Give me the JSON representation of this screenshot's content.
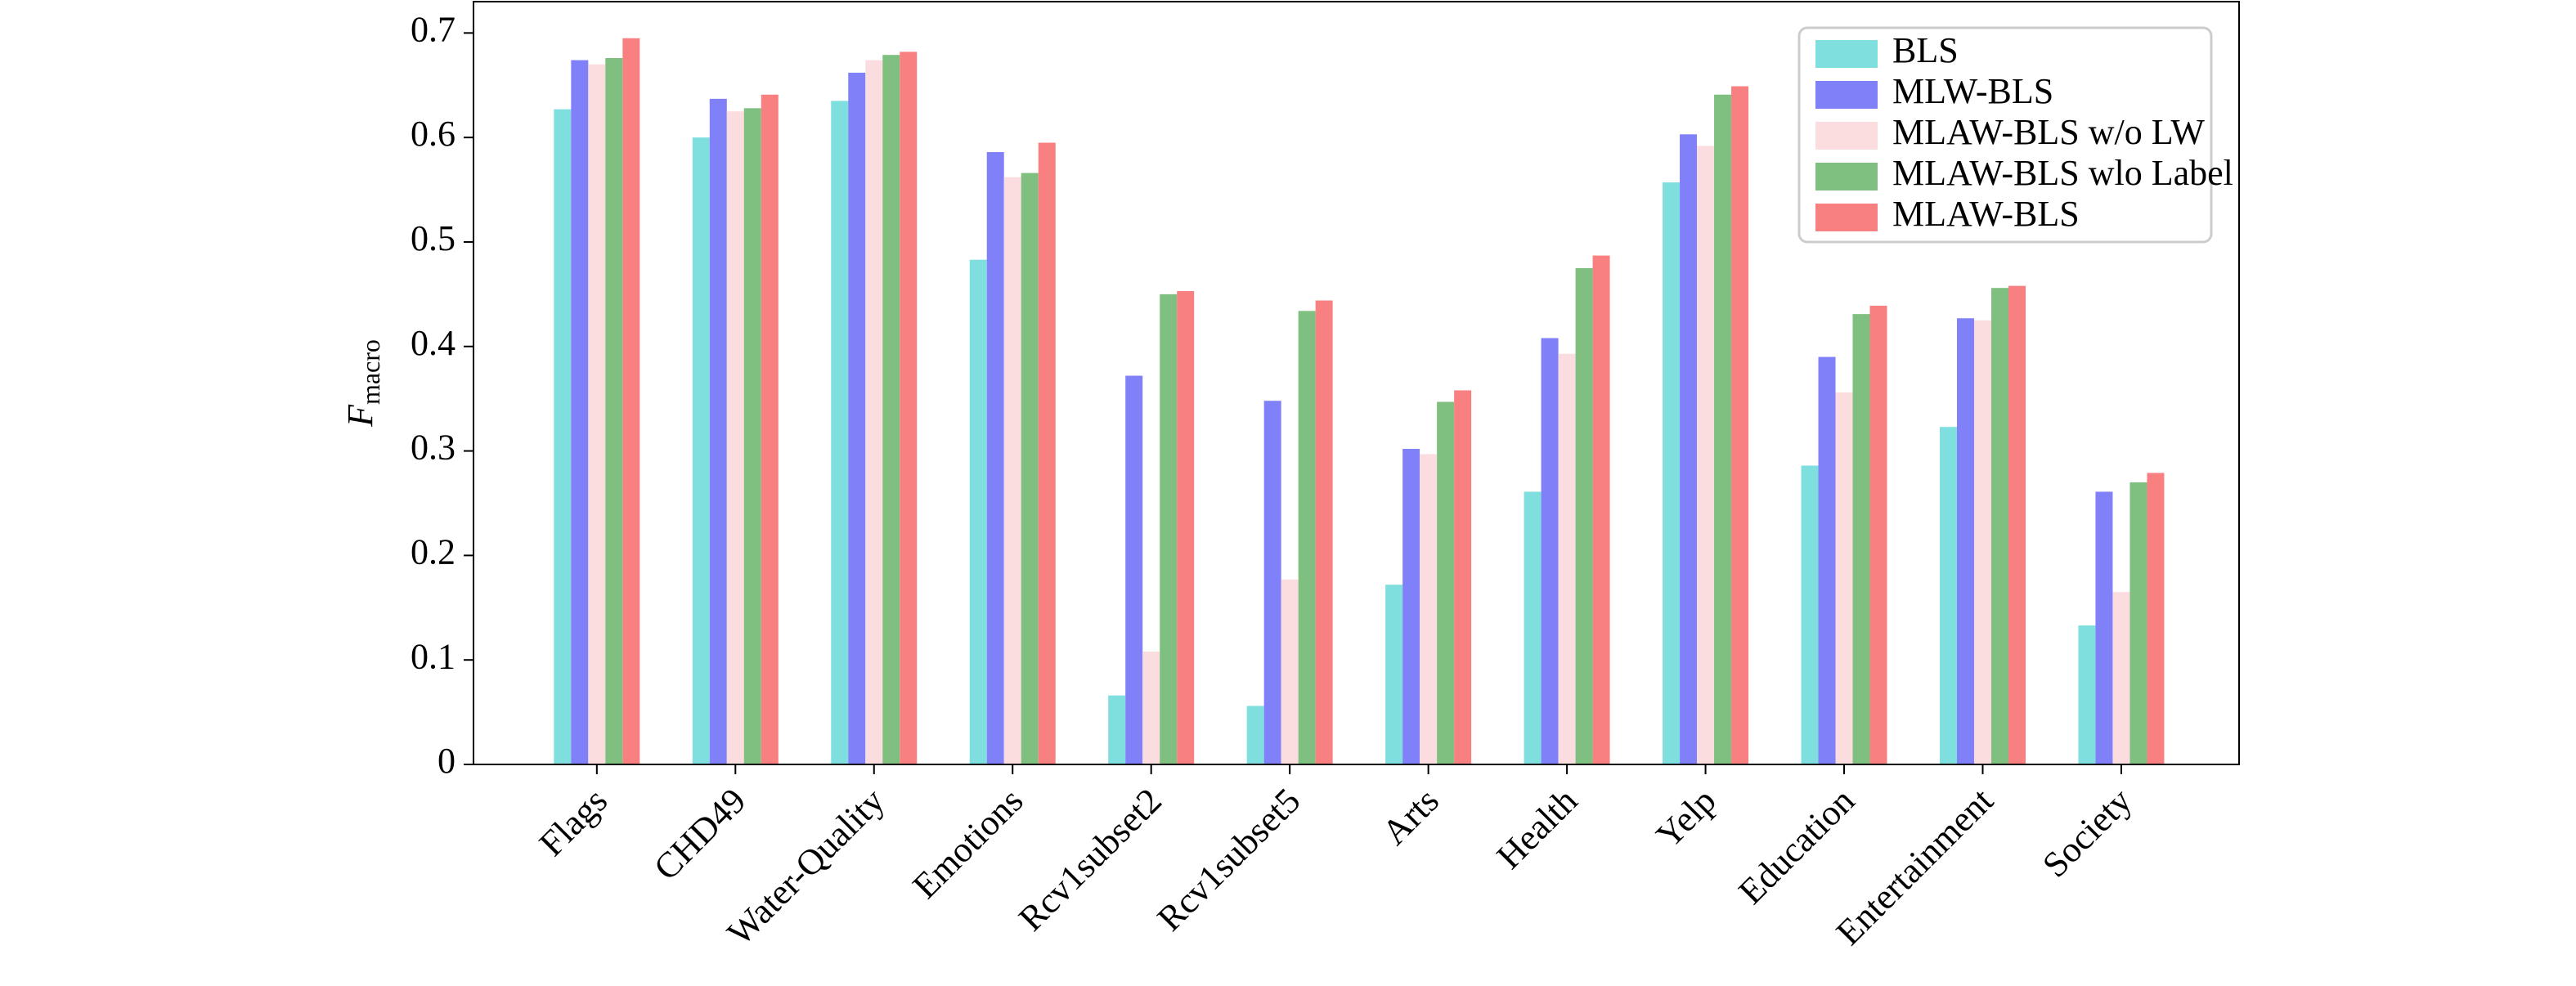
{
  "chart_data": {
    "type": "bar",
    "ylabel": "F",
    "ylabel_subscript": "macro",
    "categories": [
      "Flags",
      "CHD49",
      "Water-Quality",
      "Emotions",
      "Rcv1subset2",
      "Rcv1subset5",
      "Arts",
      "Health",
      "Yelp",
      "Education",
      "Entertainment",
      "Society"
    ],
    "series": [
      {
        "name": "BLS",
        "color": "#7fdfdf",
        "values": [
          0.627,
          0.6,
          0.635,
          0.483,
          0.066,
          0.056,
          0.172,
          0.261,
          0.557,
          0.286,
          0.323,
          0.133
        ]
      },
      {
        "name": "MLW-BLS",
        "color": "#8080f8",
        "values": [
          0.674,
          0.637,
          0.662,
          0.586,
          0.372,
          0.348,
          0.302,
          0.408,
          0.603,
          0.39,
          0.427,
          0.261
        ]
      },
      {
        "name": "MLAW-BLS w/o LW",
        "color": "#fbdde0",
        "values": [
          0.67,
          0.625,
          0.674,
          0.562,
          0.108,
          0.177,
          0.297,
          0.393,
          0.592,
          0.356,
          0.425,
          0.165
        ]
      },
      {
        "name": "MLAW-BLS wlo Label",
        "color": "#7fbf7f",
        "values": [
          0.676,
          0.628,
          0.679,
          0.566,
          0.45,
          0.434,
          0.347,
          0.475,
          0.641,
          0.431,
          0.456,
          0.27
        ]
      },
      {
        "name": "MLAW-BLS",
        "color": "#f98080",
        "values": [
          0.695,
          0.641,
          0.682,
          0.595,
          0.453,
          0.444,
          0.358,
          0.487,
          0.649,
          0.439,
          0.458,
          0.279
        ]
      }
    ],
    "ylim": [
      0,
      0.73
    ],
    "yticks": [
      0,
      0.1,
      0.2,
      0.3,
      0.4,
      0.5,
      0.6,
      0.7
    ],
    "legend": "upper right",
    "grid": false
  }
}
